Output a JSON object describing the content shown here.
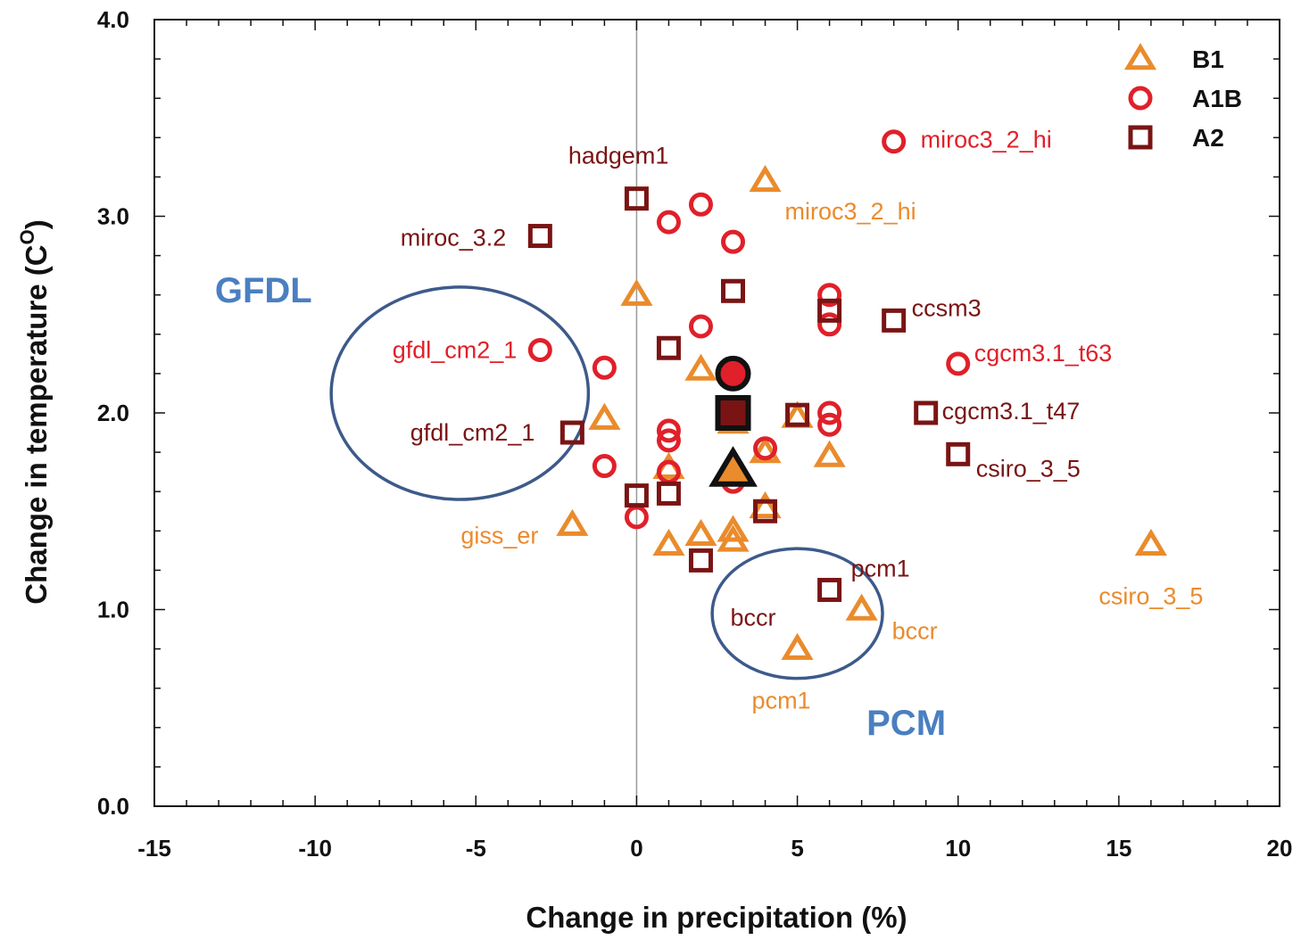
{
  "chart_data": {
    "type": "scatter",
    "xlabel": "Change in precipitation (%)",
    "ylabel": "Change in temperature (C",
    "ylabel_superscript": "O",
    "ylabel_close": ")",
    "xlim": [
      -15,
      20
    ],
    "ylim": [
      0,
      4
    ],
    "x_ticks": [
      -15,
      -10,
      -5,
      0,
      5,
      10,
      15,
      20
    ],
    "x_tick_labels": [
      "-15",
      "-10",
      "-5",
      "0",
      "5",
      "10",
      "15",
      "20"
    ],
    "y_ticks": [
      0,
      1,
      2,
      3,
      4
    ],
    "y_tick_labels": [
      "0.0",
      "1.0",
      "2.0",
      "3.0",
      "4.0"
    ],
    "legend_position": "top-right",
    "grid": false,
    "zero_line_x": 0,
    "colors": {
      "B1": "#ea8b2c",
      "A1B": "#e0202a",
      "A2": "#7a1414",
      "region": "#3d5a8a",
      "region_text": "#4a7fc1",
      "axis": "#111111"
    },
    "series": [
      {
        "name": "B1",
        "marker": "triangle",
        "points": [
          {
            "x": 4,
            "y": 3.18
          },
          {
            "x": 0,
            "y": 2.6
          },
          {
            "x": 2,
            "y": 2.22
          },
          {
            "x": -1,
            "y": 1.97
          },
          {
            "x": 3,
            "y": 1.95
          },
          {
            "x": 5,
            "y": 1.98
          },
          {
            "x": 4,
            "y": 1.8
          },
          {
            "x": 6,
            "y": 1.78
          },
          {
            "x": 1,
            "y": 1.72
          },
          {
            "x": 4,
            "y": 1.52
          },
          {
            "x": 3,
            "y": 1.4
          },
          {
            "x": 2,
            "y": 1.38
          },
          {
            "x": 3,
            "y": 1.35
          },
          {
            "x": 1,
            "y": 1.33
          },
          {
            "x": -2,
            "y": 1.43
          },
          {
            "x": 16,
            "y": 1.33
          },
          {
            "x": 7,
            "y": 1.0
          },
          {
            "x": 5,
            "y": 0.8
          }
        ]
      },
      {
        "name": "A1B",
        "marker": "circle",
        "points": [
          {
            "x": 8,
            "y": 3.38
          },
          {
            "x": 2,
            "y": 3.06
          },
          {
            "x": 1,
            "y": 2.97
          },
          {
            "x": 3,
            "y": 2.87
          },
          {
            "x": 6,
            "y": 2.6
          },
          {
            "x": 6,
            "y": 2.45
          },
          {
            "x": 2,
            "y": 2.44
          },
          {
            "x": -3,
            "y": 2.32
          },
          {
            "x": -1,
            "y": 2.23
          },
          {
            "x": 10,
            "y": 2.25
          },
          {
            "x": 6,
            "y": 2.0
          },
          {
            "x": 6,
            "y": 1.94
          },
          {
            "x": 1,
            "y": 1.91
          },
          {
            "x": 1,
            "y": 1.86
          },
          {
            "x": 4,
            "y": 1.82
          },
          {
            "x": -1,
            "y": 1.73
          },
          {
            "x": 1,
            "y": 1.7
          },
          {
            "x": 3,
            "y": 1.65
          },
          {
            "x": 0,
            "y": 1.47
          }
        ]
      },
      {
        "name": "A2",
        "marker": "square",
        "points": [
          {
            "x": 0,
            "y": 3.09
          },
          {
            "x": -3,
            "y": 2.9
          },
          {
            "x": 3,
            "y": 2.62
          },
          {
            "x": 6,
            "y": 2.52
          },
          {
            "x": 8,
            "y": 2.47
          },
          {
            "x": 1,
            "y": 2.33
          },
          {
            "x": 5,
            "y": 1.99
          },
          {
            "x": 9,
            "y": 2.0
          },
          {
            "x": -2,
            "y": 1.9
          },
          {
            "x": 10,
            "y": 1.79
          },
          {
            "x": 0,
            "y": 1.58
          },
          {
            "x": 1,
            "y": 1.59
          },
          {
            "x": 4,
            "y": 1.5
          },
          {
            "x": 2,
            "y": 1.25
          },
          {
            "x": 6,
            "y": 1.1
          }
        ]
      }
    ],
    "ensemble_means": [
      {
        "series": "A1B",
        "marker": "circle",
        "x": 3,
        "y": 2.2
      },
      {
        "series": "A2",
        "marker": "square",
        "x": 3,
        "y": 2.0
      },
      {
        "series": "B1",
        "marker": "triangle",
        "x": 3,
        "y": 1.71
      }
    ],
    "point_labels": [
      {
        "text": "miroc3_2_hi",
        "series": "A1B",
        "x": 8,
        "y": 3.38
      },
      {
        "text": "hadgem1",
        "series": "A2",
        "x": 0,
        "y": 3.09
      },
      {
        "text": "miroc3_2_hi",
        "series": "B1",
        "x": 4,
        "y": 3.18
      },
      {
        "text": "miroc_3.2",
        "series": "A2",
        "x": -3,
        "y": 2.9
      },
      {
        "text": "ccsm3",
        "series": "A2",
        "x": 8,
        "y": 2.47
      },
      {
        "text": "cgcm3.1_t63",
        "series": "A1B",
        "x": 10,
        "y": 2.25
      },
      {
        "text": "gfdl_cm2_1",
        "series": "A1B",
        "x": -3,
        "y": 2.32
      },
      {
        "text": "cgcm3.1_t47",
        "series": "A2",
        "x": 9,
        "y": 2.0
      },
      {
        "text": "gfdl_cm2_1",
        "series": "A2",
        "x": -2,
        "y": 1.9
      },
      {
        "text": "csiro_3_5",
        "series": "A2",
        "x": 10,
        "y": 1.79
      },
      {
        "text": "giss_er",
        "series": "B1",
        "x": -2,
        "y": 1.43
      },
      {
        "text": "pcm1",
        "series": "A2",
        "x": 6,
        "y": 1.1
      },
      {
        "text": "csiro_3_5",
        "series": "B1",
        "x": 16,
        "y": 1.33
      },
      {
        "text": "bccr",
        "series": "A2",
        "x": 2,
        "y": 1.25
      },
      {
        "text": "bccr",
        "series": "B1",
        "x": 7,
        "y": 1.0
      },
      {
        "text": "pcm1",
        "series": "B1",
        "x": 5,
        "y": 0.8
      }
    ],
    "annotations": [
      {
        "text": "GFDL",
        "shape": "ellipse",
        "center": {
          "x": -5.5,
          "y": 2.1
        },
        "rx_data": 4.0,
        "ry_data": 0.54
      },
      {
        "text": "PCM",
        "shape": "ellipse",
        "center": {
          "x": 5.0,
          "y": 0.98
        },
        "rx_data": 2.65,
        "ry_data": 0.33
      }
    ]
  }
}
